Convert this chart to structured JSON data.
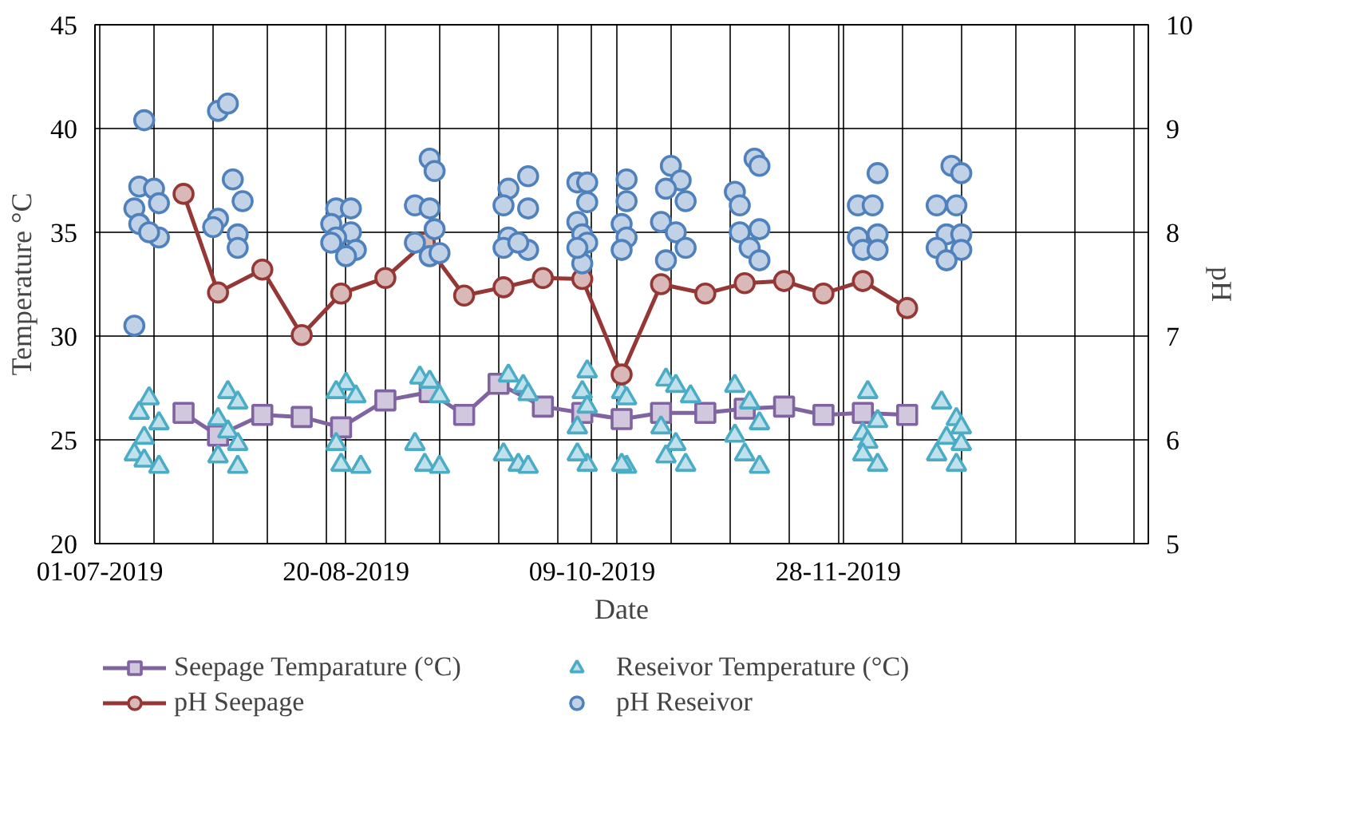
{
  "chart_data": {
    "type": "scatter",
    "xlabel": "Date",
    "ylabel": "Temperature °C",
    "y2label": "pH",
    "xlim": [
      "2019-06-30",
      "2020-01-30"
    ],
    "xticks": [
      {
        "value": "2019-07-01",
        "label": "01-07-2019"
      },
      {
        "value": "2019-07-12",
        "label": null
      },
      {
        "value": "2019-07-24",
        "label": null
      },
      {
        "value": "2019-08-04",
        "label": null
      },
      {
        "value": "2019-08-16",
        "label": null
      },
      {
        "value": "2019-08-20",
        "label": "20-08-2019"
      },
      {
        "value": "2019-08-28",
        "label": null
      },
      {
        "value": "2019-09-08",
        "label": null
      },
      {
        "value": "2019-09-20",
        "label": null
      },
      {
        "value": "2019-10-02",
        "label": null
      },
      {
        "value": "2019-10-09",
        "label": "09-10-2019"
      },
      {
        "value": "2019-10-14",
        "label": null
      },
      {
        "value": "2019-10-25",
        "label": null
      },
      {
        "value": "2019-11-06",
        "label": null
      },
      {
        "value": "2019-11-18",
        "label": null
      },
      {
        "value": "2019-11-28",
        "label": "28-11-2019"
      },
      {
        "value": "2019-11-29",
        "label": null
      },
      {
        "value": "2019-12-11",
        "label": null
      },
      {
        "value": "2019-12-23",
        "label": null
      },
      {
        "value": "2020-01-03",
        "label": null
      },
      {
        "value": "2020-01-15",
        "label": null
      },
      {
        "value": "2020-01-27",
        "label": null
      }
    ],
    "ylim": [
      20,
      45
    ],
    "yticks": [
      20,
      25,
      30,
      35,
      40,
      45
    ],
    "y2lim": [
      5,
      10
    ],
    "y2ticks": [
      5,
      6,
      7,
      8,
      9,
      10
    ],
    "grid": true,
    "legend": "bottom",
    "series": [
      {
        "name": "Seepage Temparature (°C)",
        "type": "line",
        "marker": "square",
        "line_style": "solid",
        "color": "#8064a2",
        "x": [
          "2019-07-18",
          "2019-07-25",
          "2019-08-03",
          "2019-08-11",
          "2019-08-19",
          "2019-08-28",
          "2019-09-06",
          "2019-09-13",
          "2019-09-20",
          "2019-09-29",
          "2019-10-07",
          "2019-10-15",
          "2019-10-23",
          "2019-11-01",
          "2019-11-09",
          "2019-11-17",
          "2019-11-25",
          "2019-12-03",
          "2019-12-12"
        ],
        "values": [
          26.3,
          25.2,
          26.2,
          26.1,
          25.6,
          26.9,
          27.3,
          26.2,
          27.7,
          26.6,
          26.3,
          26.0,
          26.3,
          26.3,
          26.5,
          26.6,
          26.2,
          26.3,
          26.2
        ]
      },
      {
        "name": "Reseivor Temperature (°C)",
        "type": "scatter",
        "marker": "triangle",
        "color": "#4bacc6",
        "x": [
          "2019-07-11",
          "2019-07-09",
          "2019-07-13",
          "2019-07-10",
          "2019-07-08",
          "2019-07-13",
          "2019-07-10",
          "2019-07-27",
          "2019-07-29",
          "2019-07-25",
          "2019-07-27",
          "2019-07-29",
          "2019-07-25",
          "2019-07-29",
          "2019-08-20",
          "2019-08-18",
          "2019-08-22",
          "2019-08-18",
          "2019-08-19",
          "2019-08-23",
          "2019-09-04",
          "2019-09-06",
          "2019-09-08",
          "2019-09-03",
          "2019-09-05",
          "2019-09-08",
          "2019-09-22",
          "2019-09-25",
          "2019-09-26",
          "2019-09-21",
          "2019-09-24",
          "2019-09-26",
          "2019-10-08",
          "2019-10-07",
          "2019-10-08",
          "2019-10-06",
          "2019-10-08",
          "2019-10-06",
          "2019-10-15",
          "2019-10-16",
          "2019-10-16",
          "2019-10-15",
          "2019-10-24",
          "2019-10-26",
          "2019-10-29",
          "2019-10-23",
          "2019-10-26",
          "2019-10-24",
          "2019-10-28",
          "2019-11-07",
          "2019-11-10",
          "2019-11-12",
          "2019-11-07",
          "2019-11-09",
          "2019-11-12",
          "2019-12-04",
          "2019-12-06",
          "2019-12-03",
          "2019-12-04",
          "2019-12-06",
          "2019-12-03",
          "2019-12-19",
          "2019-12-22",
          "2019-12-23",
          "2019-12-20",
          "2019-12-23",
          "2019-12-18",
          "2019-12-22"
        ],
        "values": [
          27.0,
          26.3,
          25.8,
          25.1,
          24.3,
          23.7,
          24.0,
          27.3,
          26.8,
          26.0,
          25.4,
          24.8,
          24.2,
          23.7,
          27.7,
          27.3,
          27.1,
          24.8,
          23.8,
          23.7,
          28.0,
          27.8,
          27.1,
          24.8,
          23.8,
          23.7,
          28.1,
          27.6,
          27.2,
          24.3,
          23.8,
          23.7,
          28.3,
          27.3,
          26.6,
          25.6,
          23.8,
          24.3,
          27.3,
          27.0,
          23.7,
          23.8,
          27.9,
          27.6,
          27.1,
          25.6,
          24.8,
          24.2,
          23.8,
          27.6,
          26.8,
          25.8,
          25.2,
          24.3,
          23.7,
          27.3,
          25.9,
          25.3,
          24.9,
          23.8,
          24.3,
          26.8,
          26.0,
          25.6,
          25.1,
          24.8,
          24.3,
          23.8
        ]
      },
      {
        "name": "pH Seepage",
        "type": "line",
        "marker": "circle",
        "line_style": "solid",
        "color": "#953735",
        "axis": "y2",
        "x": [
          "2019-07-18",
          "2019-07-25",
          "2019-08-03",
          "2019-08-11",
          "2019-08-19",
          "2019-08-28",
          "2019-09-05",
          "2019-09-13",
          "2019-09-21",
          "2019-09-29",
          "2019-10-07",
          "2019-10-15",
          "2019-10-23",
          "2019-11-01",
          "2019-11-09",
          "2019-11-17",
          "2019-11-25",
          "2019-12-03",
          "2019-12-12"
        ],
        "values": [
          8.37,
          7.42,
          7.64,
          7.01,
          7.41,
          7.56,
          7.9,
          7.39,
          7.47,
          7.56,
          7.55,
          6.63,
          7.5,
          7.41,
          7.51,
          7.53,
          7.41,
          7.53,
          7.27
        ]
      },
      {
        "name": "pH Reseivor",
        "type": "scatter",
        "marker": "circle",
        "color": "#4f81bd",
        "axis": "y2",
        "x": [
          "2019-07-10",
          "2019-07-08",
          "2019-07-09",
          "2019-07-12",
          "2019-07-13",
          "2019-07-08",
          "2019-07-09",
          "2019-07-13",
          "2019-07-11",
          "2019-07-25",
          "2019-07-27",
          "2019-07-28",
          "2019-07-30",
          "2019-07-25",
          "2019-07-29",
          "2019-07-29",
          "2019-07-24",
          "2019-08-18",
          "2019-08-21",
          "2019-08-17",
          "2019-08-21",
          "2019-08-18",
          "2019-08-22",
          "2019-08-20",
          "2019-08-17",
          "2019-09-06",
          "2019-09-07",
          "2019-09-03",
          "2019-09-06",
          "2019-09-07",
          "2019-09-03",
          "2019-09-06",
          "2019-09-08",
          "2019-09-26",
          "2019-09-22",
          "2019-09-21",
          "2019-09-26",
          "2019-09-22",
          "2019-09-26",
          "2019-09-21",
          "2019-09-24",
          "2019-10-06",
          "2019-10-08",
          "2019-10-08",
          "2019-10-06",
          "2019-10-07",
          "2019-10-08",
          "2019-10-07",
          "2019-10-06",
          "2019-10-16",
          "2019-10-16",
          "2019-10-15",
          "2019-10-16",
          "2019-10-15",
          "2019-10-25",
          "2019-10-27",
          "2019-10-24",
          "2019-10-28",
          "2019-10-23",
          "2019-10-26",
          "2019-10-28",
          "2019-10-24",
          "2019-11-11",
          "2019-11-12",
          "2019-11-07",
          "2019-11-08",
          "2019-11-12",
          "2019-11-08",
          "2019-11-10",
          "2019-11-12",
          "2019-12-06",
          "2019-12-02",
          "2019-12-05",
          "2019-12-02",
          "2019-12-06",
          "2019-12-03",
          "2019-12-06",
          "2019-12-21",
          "2019-12-23",
          "2019-12-18",
          "2019-12-22",
          "2019-12-20",
          "2019-12-23",
          "2019-12-18",
          "2019-12-23",
          "2019-12-20"
        ],
        "values": [
          9.08,
          7.1,
          8.44,
          8.42,
          8.28,
          8.23,
          8.08,
          7.95,
          8.0,
          9.17,
          9.24,
          8.51,
          8.3,
          8.13,
          7.98,
          7.85,
          8.05,
          8.23,
          8.23,
          8.08,
          8.0,
          7.95,
          7.83,
          7.77,
          7.9,
          8.71,
          8.59,
          8.26,
          8.23,
          8.03,
          7.9,
          7.77,
          7.8,
          8.54,
          8.42,
          8.26,
          8.23,
          7.95,
          7.83,
          7.85,
          7.9,
          8.48,
          8.48,
          8.29,
          8.1,
          7.98,
          7.9,
          7.7,
          7.85,
          8.51,
          8.3,
          8.08,
          7.95,
          7.83,
          8.64,
          8.5,
          8.42,
          8.3,
          8.1,
          8.0,
          7.85,
          7.73,
          8.71,
          8.64,
          8.39,
          8.26,
          8.03,
          8.0,
          7.85,
          7.73,
          8.57,
          8.26,
          8.26,
          7.95,
          7.98,
          7.83,
          7.83,
          8.64,
          8.57,
          8.26,
          8.26,
          7.98,
          7.98,
          7.85,
          7.83,
          7.73
        ]
      }
    ]
  }
}
